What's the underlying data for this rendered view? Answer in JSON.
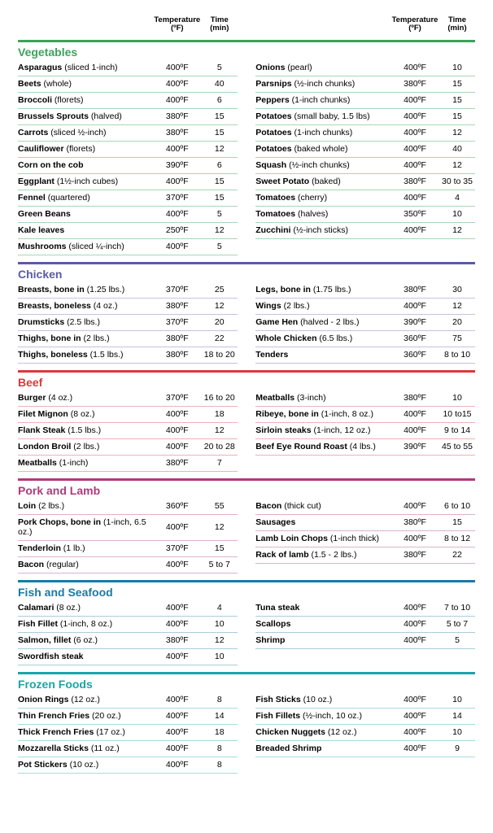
{
  "header": {
    "temp_label": "Temperature",
    "temp_unit": "(ºF)",
    "time_label": "Time",
    "time_unit": "(min)"
  },
  "sections": [
    {
      "title": "Vegetables",
      "title_color": "#3aa35a",
      "line_color": "#3aa35a",
      "row_border_color": "#a9d6b5",
      "left": [
        {
          "main": "Asparagus",
          "detail": " (sliced 1-inch)",
          "temp": "400ºF",
          "time": "5"
        },
        {
          "main": "Beets",
          "detail": " (whole)",
          "temp": "400ºF",
          "time": "40"
        },
        {
          "main": "Broccoli",
          "detail": " (florets)",
          "temp": "400ºF",
          "time": "6"
        },
        {
          "main": "Brussels Sprouts",
          "detail": " (halved)",
          "temp": "380ºF",
          "time": "15"
        },
        {
          "main": "Carrots",
          "detail": " (sliced ½-inch)",
          "temp": "380ºF",
          "time": "15"
        },
        {
          "main": "Cauliflower",
          "detail": " (florets)",
          "temp": "400ºF",
          "time": "12"
        },
        {
          "main": "Corn on the cob",
          "detail": "",
          "temp": "390ºF",
          "time": "6"
        },
        {
          "main": "Eggplant",
          "detail": " (1½-inch cubes)",
          "temp": "400ºF",
          "time": "15"
        },
        {
          "main": "Fennel",
          "detail": " (quartered)",
          "temp": "370ºF",
          "time": "15"
        },
        {
          "main": "Green Beans",
          "detail": "",
          "temp": "400ºF",
          "time": "5"
        },
        {
          "main": "Kale leaves",
          "detail": "",
          "temp": "250ºF",
          "time": "12"
        },
        {
          "main": "Mushrooms",
          "detail": " (sliced ¼-inch)",
          "temp": "400ºF",
          "time": "5"
        }
      ],
      "right": [
        {
          "main": "Onions",
          "detail": " (pearl)",
          "temp": "400ºF",
          "time": "10"
        },
        {
          "main": "Parsnips",
          "detail": " (½-inch chunks)",
          "temp": "380ºF",
          "time": "15"
        },
        {
          "main": "Peppers",
          "detail": " (1-inch chunks)",
          "temp": "400ºF",
          "time": "15"
        },
        {
          "main": "Potatoes",
          "detail": " (small baby, 1.5 lbs)",
          "temp": "400ºF",
          "time": "15"
        },
        {
          "main": "Potatoes",
          "detail": " (1-inch chunks)",
          "temp": "400ºF",
          "time": "12"
        },
        {
          "main": "Potatoes",
          "detail": " (baked whole)",
          "temp": "400ºF",
          "time": "40"
        },
        {
          "main": "Squash",
          "detail": " (½-inch chunks)",
          "temp": "400ºF",
          "time": "12"
        },
        {
          "main": "Sweet Potato",
          "detail": " (baked)",
          "temp": "380ºF",
          "time": "30 to 35"
        },
        {
          "main": "Tomatoes",
          "detail": " (cherry)",
          "temp": "400ºF",
          "time": "4"
        },
        {
          "main": "Tomatoes",
          "detail": " (halves)",
          "temp": "350ºF",
          "time": "10"
        },
        {
          "main": "Zucchini",
          "detail": " (½-inch sticks)",
          "temp": "400ºF",
          "time": "12"
        }
      ]
    },
    {
      "title": "Chicken",
      "title_color": "#5a5aa5",
      "line_color": "#5a5aa5",
      "row_border_color": "#c4c4de",
      "left": [
        {
          "main": "Breasts, bone in",
          "detail": " (1.25 lbs.)",
          "temp": "370ºF",
          "time": "25"
        },
        {
          "main": "Breasts, boneless ",
          "detail": " (4 oz.)",
          "temp": "380ºF",
          "time": "12"
        },
        {
          "main": "Drumsticks",
          "detail": " (2.5 lbs.)",
          "temp": "370ºF",
          "time": "20"
        },
        {
          "main": "Thighs, bone in ",
          "detail": " (2 lbs.)",
          "temp": "380ºF",
          "time": "22"
        },
        {
          "main": "Thighs, boneless",
          "detail": " (1.5 lbs.)",
          "temp": "380ºF",
          "time": "18 to 20"
        }
      ],
      "right": [
        {
          "main": "Legs, bone in ",
          "detail": " (1.75 lbs.)",
          "temp": "380ºF",
          "time": "30"
        },
        {
          "main": "Wings ",
          "detail": " (2 lbs.)",
          "temp": "400ºF",
          "time": "12"
        },
        {
          "main": "Game Hen",
          "detail": " (halved - 2 lbs.)",
          "temp": "390ºF",
          "time": "20"
        },
        {
          "main": "Whole Chicken",
          "detail": " (6.5 lbs.)",
          "temp": "360ºF",
          "time": "75"
        },
        {
          "main": "Tenders",
          "detail": "",
          "temp": "360ºF",
          "time": "8 to 10"
        }
      ]
    },
    {
      "title": "Beef",
      "title_color": "#d93a3a",
      "line_color": "#d93a3a",
      "row_border_color": "#eeb3b3",
      "left": [
        {
          "main": "Burger ",
          "detail": " (4 oz.)",
          "temp": "370ºF",
          "time": "16 to 20"
        },
        {
          "main": "Filet Mignon",
          "detail": " (8 oz.)",
          "temp": "400ºF",
          "time": "18"
        },
        {
          "main": "Flank Steak ",
          "detail": " (1.5 lbs.)",
          "temp": "400ºF",
          "time": "12"
        },
        {
          "main": "London Broil ",
          "detail": " (2 lbs.)",
          "temp": "400ºF",
          "time": "20 to 28"
        },
        {
          "main": "Meatballs",
          "detail": " (1-inch)",
          "temp": "380ºF",
          "time": "7"
        }
      ],
      "right": [
        {
          "main": "Meatballs",
          "detail": " (3-inch)",
          "temp": "380ºF",
          "time": "10"
        },
        {
          "main": "Ribeye, bone in",
          "detail": " (1-inch, 8 oz.)",
          "temp": "400ºF",
          "time": "10 to15"
        },
        {
          "main": "Sirloin steaks",
          "detail": " (1-inch, 12 oz.)",
          "temp": "400ºF",
          "time": "9 to 14"
        },
        {
          "main": "Beef Eye Round Roast",
          "detail": " (4 lbs.)",
          "temp": "390ºF",
          "time": "45 to 55"
        }
      ]
    },
    {
      "title": "Pork and Lamb",
      "title_color": "#b03a7a",
      "line_color": "#b03a7a",
      "row_border_color": "#ddb3cc",
      "left": [
        {
          "main": "Loin",
          "detail": " (2 lbs.)",
          "temp": "360ºF",
          "time": "55"
        },
        {
          "main": "Pork Chops, bone in",
          "detail": " (1-inch, 6.5 oz.)",
          "temp": "400ºF",
          "time": "12"
        },
        {
          "main": "Tenderloin",
          "detail": " (1 lb.)",
          "temp": "370ºF",
          "time": "15"
        },
        {
          "main": "Bacon",
          "detail": " (regular)",
          "temp": "400ºF",
          "time": "5 to 7"
        }
      ],
      "right": [
        {
          "main": "Bacon",
          "detail": " (thick cut)",
          "temp": "400ºF",
          "time": "6 to 10"
        },
        {
          "main": "Sausages",
          "detail": "",
          "temp": "380ºF",
          "time": "15"
        },
        {
          "main": "Lamb Loin Chops",
          "detail": " (1-inch thick)",
          "temp": "400ºF",
          "time": "8 to 12"
        },
        {
          "main": "Rack of lamb",
          "detail": " (1.5 - 2 lbs.)",
          "temp": "380ºF",
          "time": "22"
        }
      ]
    },
    {
      "title": "Fish and Seafood",
      "title_color": "#1a7aa5",
      "line_color": "#1a7aa5",
      "row_border_color": "#a9cddc",
      "left": [
        {
          "main": "Calamari",
          "detail": " (8 oz.)",
          "temp": "400ºF",
          "time": "4"
        },
        {
          "main": "Fish Fillet",
          "detail": " (1-inch, 8 oz.)",
          "temp": "400ºF",
          "time": "10"
        },
        {
          "main": "Salmon, fillet ",
          "detail": " (6 oz.)",
          "temp": "380ºF",
          "time": "12"
        },
        {
          "main": "Swordfish steak",
          "detail": "",
          "temp": "400ºF",
          "time": "10"
        }
      ],
      "right": [
        {
          "main": "Tuna steak",
          "detail": "",
          "temp": "400ºF",
          "time": "7 to 10"
        },
        {
          "main": "Scallops",
          "detail": "",
          "temp": "400ºF",
          "time": "5 to 7"
        },
        {
          "main": "Shrimp",
          "detail": "",
          "temp": "400ºF",
          "time": "5"
        }
      ]
    },
    {
      "title": "Frozen Foods",
      "title_color": "#1aa5a5",
      "line_color": "#1aa5a5",
      "row_border_color": "#a9dcdc",
      "left": [
        {
          "main": "Onion Rings ",
          "detail": " (12 oz.)",
          "temp": "400ºF",
          "time": "8"
        },
        {
          "main": "Thin French Fries ",
          "detail": " (20 oz.)",
          "temp": "400ºF",
          "time": "14"
        },
        {
          "main": "Thick French Fries",
          "detail": " (17 oz.)",
          "temp": "400ºF",
          "time": "18"
        },
        {
          "main": "Mozzarella Sticks",
          "detail": " (11 oz.)",
          "temp": "400ºF",
          "time": "8"
        },
        {
          "main": "Pot Stickers",
          "detail": " (10 oz.)",
          "temp": "400ºF",
          "time": "8"
        }
      ],
      "right": [
        {
          "main": "Fish Sticks",
          "detail": " (10 oz.)",
          "temp": "400ºF",
          "time": "10"
        },
        {
          "main": "Fish Fillets",
          "detail": " (½-inch, 10 oz.)",
          "temp": "400ºF",
          "time": "14"
        },
        {
          "main": "Chicken Nuggets",
          "detail": " (12 oz.)",
          "temp": "400ºF",
          "time": "10"
        },
        {
          "main": "Breaded Shrimp",
          "detail": "",
          "temp": "400ºF",
          "time": "9"
        }
      ]
    }
  ]
}
